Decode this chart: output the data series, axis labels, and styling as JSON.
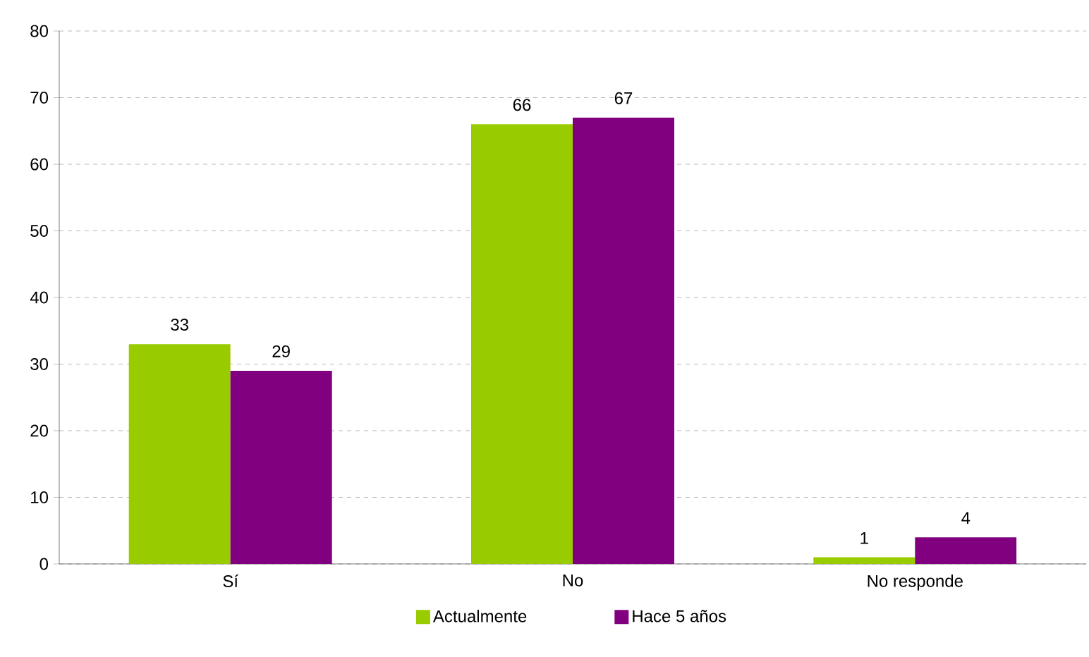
{
  "chart_data": {
    "type": "bar",
    "categories": [
      "Sí",
      "No",
      "No responde"
    ],
    "series": [
      {
        "name": "Actualmente",
        "color": "#99cc00",
        "values": [
          33,
          66,
          1
        ]
      },
      {
        "name": "Hace 5 años",
        "color": "#800080",
        "values": [
          29,
          67,
          4
        ]
      }
    ],
    "ylim": [
      0,
      80
    ],
    "yticks": [
      0,
      10,
      20,
      30,
      40,
      50,
      60,
      70,
      80
    ],
    "grid": "y",
    "legend": "bottom",
    "data_labels": true
  }
}
